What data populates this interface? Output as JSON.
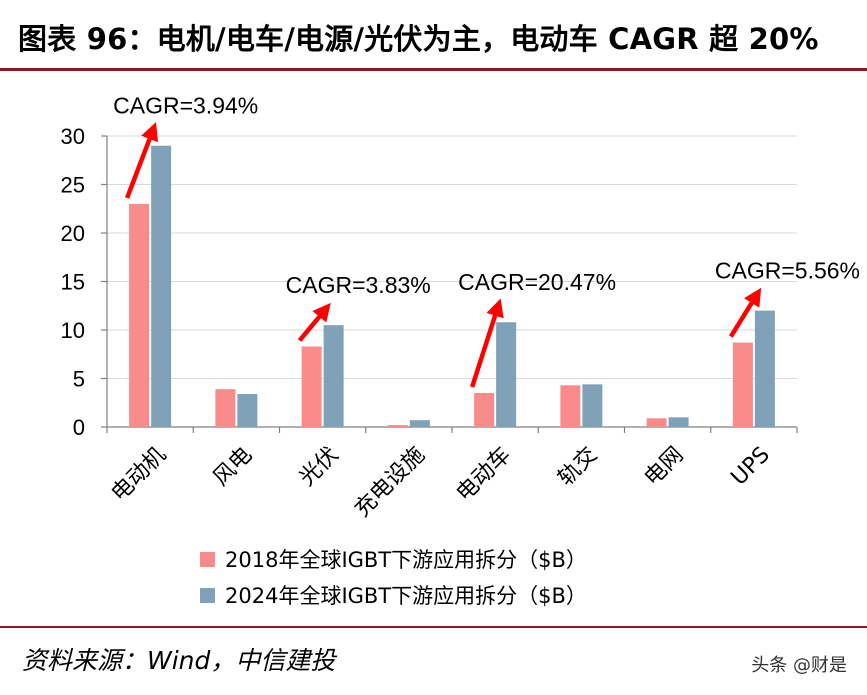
{
  "header": {
    "title": "图表 96：电机/电车/电源/光伏为主，电动车 CAGR 超 20%"
  },
  "footer": {
    "source": "资料来源：Wind，中信建投",
    "watermark": "头条 @财是"
  },
  "colors": {
    "series_2018": "#f98b8b",
    "series_2024": "#7fa2b9",
    "arrow": "#ff0000",
    "accent_rule": "#8b1a1a",
    "grid": "#d9d9d9"
  },
  "chart_data": {
    "type": "bar",
    "categories": [
      "电动机",
      "风电",
      "光伏",
      "充电设施",
      "电动车",
      "轨交",
      "电网",
      "UPS"
    ],
    "series": [
      {
        "name": "2018年全球IGBT下游应用拆分（$B）",
        "values": [
          23.0,
          3.9,
          8.3,
          0.2,
          3.5,
          4.3,
          0.9,
          8.7
        ]
      },
      {
        "name": "2024年全球IGBT下游应用拆分（$B）",
        "values": [
          29.0,
          3.4,
          10.5,
          0.7,
          10.8,
          4.4,
          1.0,
          12.0
        ]
      }
    ],
    "yticks": [
      0,
      5,
      10,
      15,
      20,
      25,
      30
    ],
    "ylim": [
      0,
      30
    ],
    "grid": true,
    "legend_position": "bottom",
    "annotations": [
      {
        "text": "CAGR=3.94%",
        "category_index": 0
      },
      {
        "text": "CAGR=3.83%",
        "category_index": 2
      },
      {
        "text": "CAGR=20.47%",
        "category_index": 4
      },
      {
        "text": "CAGR=5.56%",
        "category_index": 7
      }
    ]
  }
}
